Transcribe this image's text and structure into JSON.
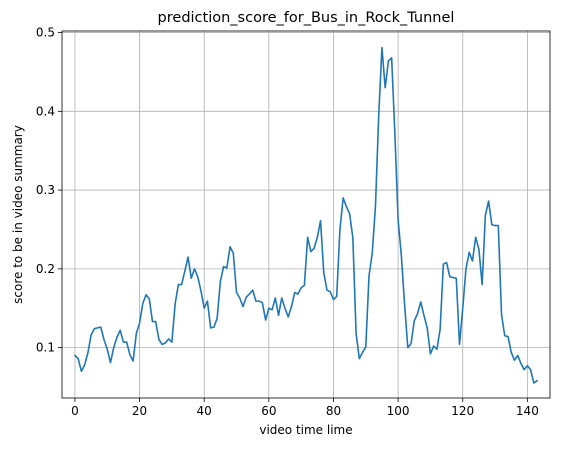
{
  "chart_data": {
    "type": "line",
    "title": "prediction_score_for_Bus_in_Rock_Tunnel",
    "xlabel": "video time lime",
    "ylabel": "score to be in video summary",
    "xlim": [
      -4,
      147
    ],
    "ylim": [
      0.036,
      0.502
    ],
    "xticks": [
      0,
      20,
      40,
      60,
      80,
      100,
      120,
      140
    ],
    "yticks": [
      0.1,
      0.2,
      0.3,
      0.4,
      0.5
    ],
    "grid": true,
    "color": "#1f77b4",
    "series": [
      {
        "x": [
          0,
          1,
          2,
          3,
          4,
          5,
          6,
          7,
          8,
          9,
          10,
          11,
          12,
          13,
          14,
          15,
          16,
          17,
          18,
          19,
          20,
          21,
          22,
          23,
          24,
          25,
          26,
          27,
          28,
          29,
          30,
          31,
          32,
          33,
          34,
          35,
          36,
          37,
          38,
          39,
          40,
          41,
          42,
          43,
          44,
          45,
          46,
          47,
          48,
          49,
          50,
          51,
          52,
          53,
          54,
          55,
          56,
          57,
          58,
          59,
          60,
          61,
          62,
          63,
          64,
          65,
          66,
          67,
          68,
          69,
          70,
          71,
          72,
          73,
          74,
          75,
          76,
          77,
          78,
          79,
          80,
          81,
          82,
          83,
          84,
          85,
          86,
          87,
          88,
          89,
          90,
          91,
          92,
          93,
          94,
          95,
          96,
          97,
          98,
          99,
          100,
          101,
          102,
          103,
          104,
          105,
          106,
          107,
          108,
          109,
          110,
          111,
          112,
          113,
          114,
          115,
          116,
          117,
          118,
          119,
          120,
          121,
          122,
          123,
          124,
          125,
          126,
          127,
          128,
          129,
          130,
          131,
          132,
          133,
          134,
          135,
          136,
          137,
          138,
          139,
          140,
          141,
          142,
          143
        ],
        "values": [
          0.09,
          0.086,
          0.07,
          0.078,
          0.093,
          0.116,
          0.124,
          0.125,
          0.126,
          0.11,
          0.098,
          0.081,
          0.1,
          0.113,
          0.122,
          0.107,
          0.107,
          0.091,
          0.083,
          0.118,
          0.131,
          0.156,
          0.167,
          0.162,
          0.133,
          0.133,
          0.11,
          0.104,
          0.106,
          0.111,
          0.107,
          0.155,
          0.18,
          0.18,
          0.197,
          0.215,
          0.188,
          0.2,
          0.19,
          0.172,
          0.15,
          0.159,
          0.125,
          0.126,
          0.137,
          0.184,
          0.203,
          0.201,
          0.228,
          0.22,
          0.17,
          0.163,
          0.152,
          0.164,
          0.168,
          0.173,
          0.159,
          0.159,
          0.157,
          0.135,
          0.15,
          0.148,
          0.163,
          0.141,
          0.163,
          0.15,
          0.139,
          0.152,
          0.17,
          0.168,
          0.176,
          0.179,
          0.24,
          0.222,
          0.226,
          0.24,
          0.261,
          0.195,
          0.173,
          0.171,
          0.161,
          0.165,
          0.25,
          0.29,
          0.279,
          0.27,
          0.239,
          0.118,
          0.086,
          0.094,
          0.101,
          0.191,
          0.22,
          0.28,
          0.395,
          0.481,
          0.43,
          0.464,
          0.468,
          0.372,
          0.262,
          0.217,
          0.155,
          0.1,
          0.105,
          0.134,
          0.143,
          0.158,
          0.141,
          0.125,
          0.092,
          0.102,
          0.098,
          0.123,
          0.206,
          0.208,
          0.19,
          0.189,
          0.188,
          0.104,
          0.15,
          0.2,
          0.221,
          0.21,
          0.24,
          0.225,
          0.18,
          0.268,
          0.286,
          0.256,
          0.255,
          0.255,
          0.142,
          0.115,
          0.114,
          0.094,
          0.084,
          0.09,
          0.08,
          0.072,
          0.077,
          0.072,
          0.055,
          0.058
        ]
      }
    ]
  }
}
